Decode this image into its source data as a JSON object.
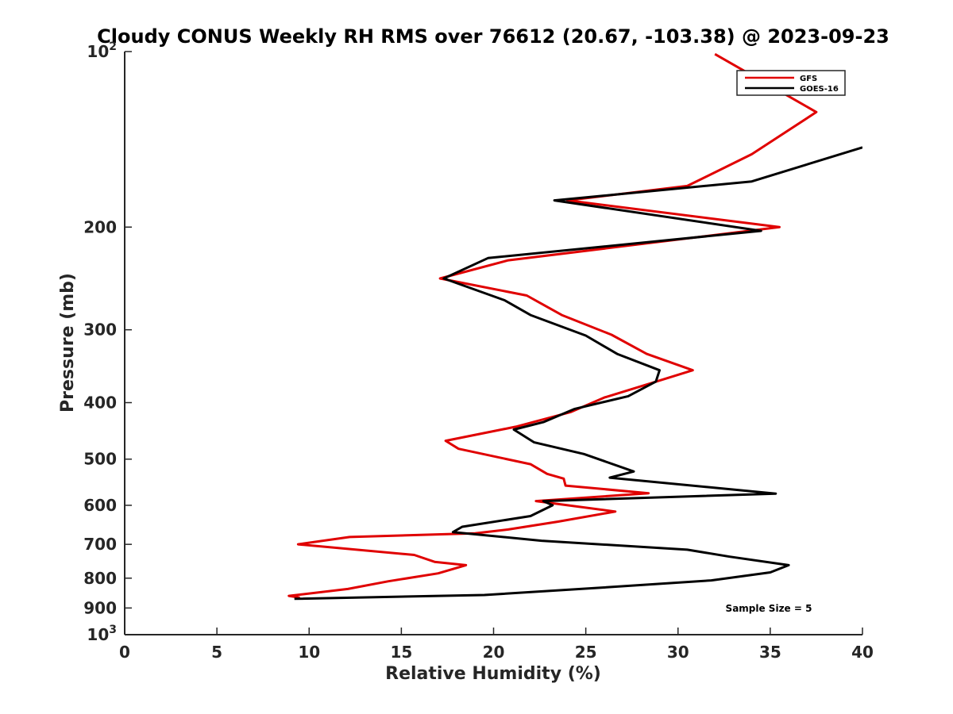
{
  "chart_data": {
    "type": "line",
    "title": "Cloudy CONUS Weekly RH RMS over 76612 (20.67, -103.38) @ 2023-09-23",
    "xlabel": "Relative Humidity (%)",
    "ylabel": "Pressure (mb)",
    "xlim": [
      0,
      40
    ],
    "ylim": [
      100,
      1000
    ],
    "yscale": "log",
    "yreversed": true,
    "x_ticks": [
      "0",
      "5",
      "10",
      "15",
      "20",
      "25",
      "30",
      "35",
      "40"
    ],
    "y_ticks": [
      {
        "value": 100,
        "label": "10",
        "sup": "2"
      },
      {
        "value": 200,
        "label": "200",
        "sup": ""
      },
      {
        "value": 300,
        "label": "300",
        "sup": ""
      },
      {
        "value": 400,
        "label": "400",
        "sup": ""
      },
      {
        "value": 500,
        "label": "500",
        "sup": ""
      },
      {
        "value": 600,
        "label": "600",
        "sup": ""
      },
      {
        "value": 700,
        "label": "700",
        "sup": ""
      },
      {
        "value": 800,
        "label": "800",
        "sup": ""
      },
      {
        "value": 900,
        "label": "900",
        "sup": ""
      },
      {
        "value": 1000,
        "label": "10",
        "sup": "3"
      }
    ],
    "legend_position": "top-right",
    "annotation": "Sample Size = 5",
    "series": [
      {
        "name": "GFS",
        "color": "#e00000",
        "x": [
          32.0,
          37.5,
          34.0,
          30.5,
          24.0,
          35.5,
          20.8,
          17.1,
          21.8,
          23.7,
          26.4,
          28.3,
          30.8,
          28.6,
          26.0,
          24.2,
          21.2,
          17.4,
          18.1,
          22.0,
          22.9,
          23.8,
          23.9,
          28.4,
          22.3,
          26.6,
          23.5,
          20.8,
          19.0,
          12.2,
          9.4,
          15.7,
          16.8,
          18.5,
          17.0,
          14.3,
          12.1,
          8.9,
          9.5
        ],
        "y": [
          101,
          127,
          150,
          170,
          180,
          200,
          228,
          245,
          262,
          283,
          306,
          330,
          352,
          370,
          392,
          415,
          440,
          465,
          480,
          510,
          530,
          540,
          555,
          572,
          590,
          615,
          640,
          660,
          670,
          680,
          700,
          730,
          750,
          760,
          785,
          810,
          835,
          858,
          864
        ]
      },
      {
        "name": "GOES-16",
        "color": "#000000",
        "x": [
          40.0,
          34.0,
          23.3,
          34.5,
          19.7,
          17.3,
          20.6,
          22.0,
          25.0,
          26.7,
          29.0,
          28.8,
          27.3,
          24.4,
          22.7,
          21.1,
          22.2,
          24.9,
          27.6,
          26.3,
          35.3,
          22.7,
          23.2,
          22.0,
          18.3,
          17.8,
          22.6,
          30.5,
          32.8,
          36.0,
          35.0,
          31.8,
          26.0,
          19.5,
          9.2
        ],
        "y": [
          146,
          167,
          180,
          203,
          226,
          245,
          267,
          283,
          307,
          330,
          352,
          368,
          390,
          410,
          432,
          445,
          468,
          490,
          525,
          538,
          573,
          590,
          600,
          626,
          653,
          667,
          690,
          715,
          735,
          760,
          782,
          807,
          830,
          855,
          868
        ]
      }
    ]
  }
}
